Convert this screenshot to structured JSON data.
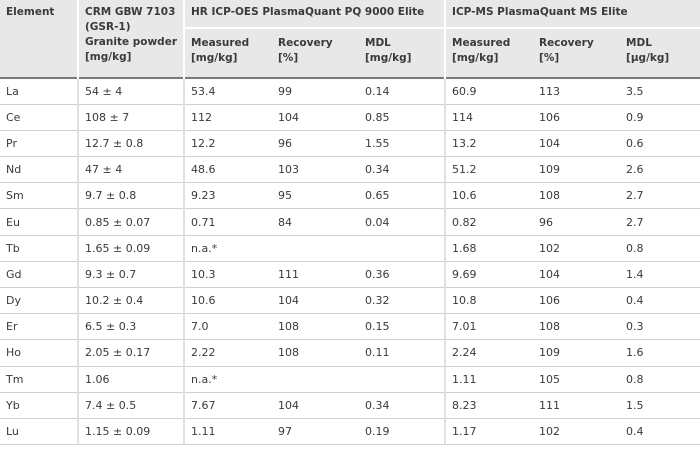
{
  "header": {
    "element": "Element",
    "crm_line1": "CRM GBW 7103",
    "crm_line2": "(GSR-1)",
    "crm_line3": "Granite powder",
    "crm_line4": "[mg/kg]",
    "oes_group": "HR ICP-OES PlasmaQuant PQ 9000 Elite",
    "ms_group": "ICP-MS PlasmaQuant MS Elite",
    "oes_measured": "Measured",
    "oes_measured_unit": "[mg/kg]",
    "oes_recovery": "Recovery",
    "oes_recovery_unit": "[%]",
    "oes_mdl": "MDL",
    "oes_mdl_unit": "[mg/kg]",
    "ms_measured": "Measured",
    "ms_measured_unit": "[mg/kg]",
    "ms_recovery": "Recovery",
    "ms_recovery_unit": "[%]",
    "ms_mdl": "MDL",
    "ms_mdl_unit": "[µg/kg]"
  },
  "rows": [
    {
      "element": "La",
      "crm": "54 ± 4",
      "oes_measured": "53.4",
      "oes_recovery": "99",
      "oes_mdl": "0.14",
      "ms_measured": "60.9",
      "ms_recovery": "113",
      "ms_mdl": "3.5"
    },
    {
      "element": "Ce",
      "crm": "108 ± 7",
      "oes_measured": "112",
      "oes_recovery": "104",
      "oes_mdl": "0.85",
      "ms_measured": "114",
      "ms_recovery": "106",
      "ms_mdl": "0.9"
    },
    {
      "element": "Pr",
      "crm": "12.7 ± 0.8",
      "oes_measured": "12.2",
      "oes_recovery": "96",
      "oes_mdl": "1.55",
      "ms_measured": "13.2",
      "ms_recovery": "104",
      "ms_mdl": "0.6"
    },
    {
      "element": "Nd",
      "crm": "47 ± 4",
      "oes_measured": "48.6",
      "oes_recovery": "103",
      "oes_mdl": "0.34",
      "ms_measured": "51.2",
      "ms_recovery": "109",
      "ms_mdl": "2.6"
    },
    {
      "element": "Sm",
      "crm": "9.7 ± 0.8",
      "oes_measured": "9.23",
      "oes_recovery": "95",
      "oes_mdl": "0.65",
      "ms_measured": "10.6",
      "ms_recovery": "108",
      "ms_mdl": "2.7"
    },
    {
      "element": "Eu",
      "crm": "0.85 ± 0.07",
      "oes_measured": "0.71",
      "oes_recovery": "84",
      "oes_mdl": "0.04",
      "ms_measured": "0.82",
      "ms_recovery": "96",
      "ms_mdl": "2.7"
    },
    {
      "element": "Tb",
      "crm": "1.65 ± 0.09",
      "oes_measured": "n.a.*",
      "oes_recovery": "",
      "oes_mdl": "",
      "ms_measured": "1.68",
      "ms_recovery": "102",
      "ms_mdl": "0.8"
    },
    {
      "element": "Gd",
      "crm": "9.3 ± 0.7",
      "oes_measured": "10.3",
      "oes_recovery": "111",
      "oes_mdl": "0.36",
      "ms_measured": "9.69",
      "ms_recovery": "104",
      "ms_mdl": "1.4"
    },
    {
      "element": "Dy",
      "crm": "10.2 ± 0.4",
      "oes_measured": "10.6",
      "oes_recovery": "104",
      "oes_mdl": "0.32",
      "ms_measured": "10.8",
      "ms_recovery": "106",
      "ms_mdl": "0.4"
    },
    {
      "element": "Er",
      "crm": "6.5 ± 0.3",
      "oes_measured": "7.0",
      "oes_recovery": "108",
      "oes_mdl": "0.15",
      "ms_measured": "7.01",
      "ms_recovery": "108",
      "ms_mdl": "0.3"
    },
    {
      "element": "Ho",
      "crm": "2.05 ± 0.17",
      "oes_measured": "2.22",
      "oes_recovery": "108",
      "oes_mdl": "0.11",
      "ms_measured": "2.24",
      "ms_recovery": "109",
      "ms_mdl": "1.6"
    },
    {
      "element": "Tm",
      "crm": "1.06",
      "oes_measured": "n.a.*",
      "oes_recovery": "",
      "oes_mdl": "",
      "ms_measured": "1.11",
      "ms_recovery": "105",
      "ms_mdl": "0.8"
    },
    {
      "element": "Yb",
      "crm": "7.4 ± 0.5",
      "oes_measured": "7.67",
      "oes_recovery": "104",
      "oes_mdl": "0.34",
      "ms_measured": "8.23",
      "ms_recovery": "111",
      "ms_mdl": "1.5"
    },
    {
      "element": "Lu",
      "crm": "1.15 ± 0.09",
      "oes_measured": "1.11",
      "oes_recovery": "97",
      "oes_mdl": "0.19",
      "ms_measured": "1.17",
      "ms_recovery": "102",
      "ms_mdl": "0.4"
    }
  ]
}
